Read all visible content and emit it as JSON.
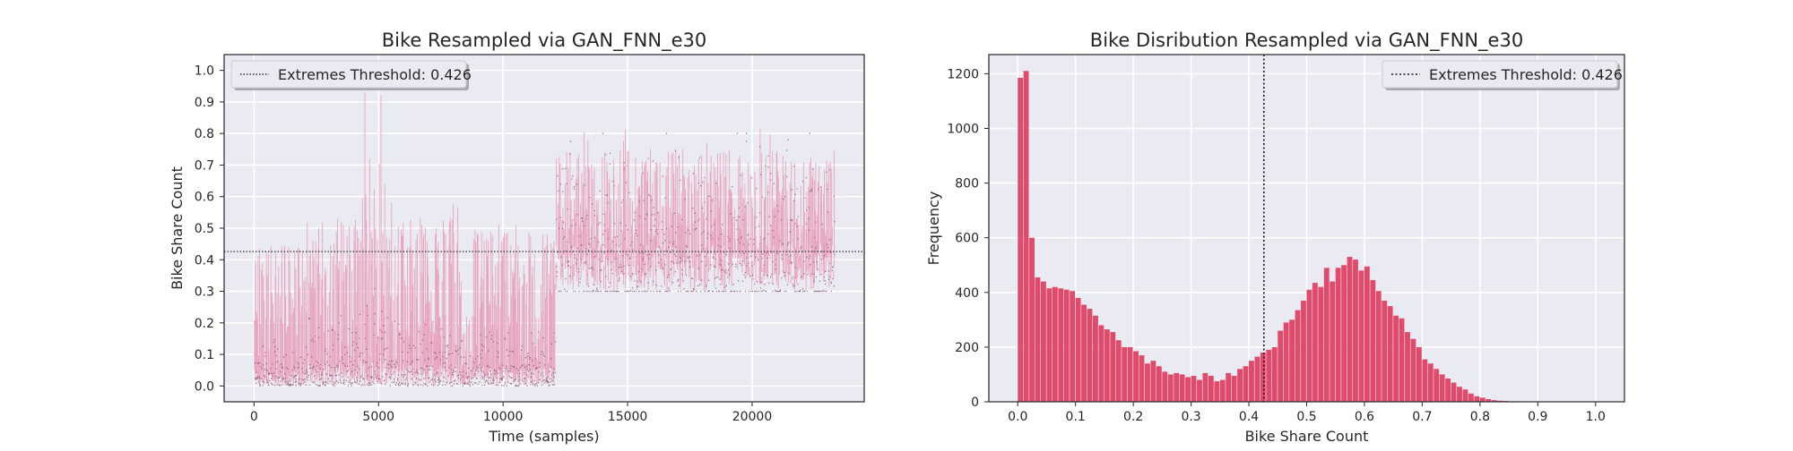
{
  "chart_data": [
    {
      "type": "line",
      "title": "Bike Resampled via GAN_FNN_e30",
      "xlabel": "Time (samples)",
      "ylabel": "Bike Share Count",
      "xlim": [
        -1200,
        24500
      ],
      "ylim": [
        -0.05,
        1.05
      ],
      "xticks": [
        0,
        5000,
        10000,
        15000,
        20000
      ],
      "yticks": [
        0.0,
        0.1,
        0.2,
        0.3,
        0.4,
        0.5,
        0.6,
        0.7,
        0.8,
        0.9,
        1.0
      ],
      "grid": true,
      "legend": {
        "position": "top-left",
        "entries": [
          "Extremes Threshold: 0.426"
        ]
      },
      "threshold": 0.426,
      "colors": {
        "line": "#e8a5bf",
        "points": "#7a4a66",
        "threshold": "#333333",
        "background": "#eaeaf2"
      },
      "series": [
        {
          "segments": [
            {
              "x_start": 0,
              "x_end": 2100,
              "low": 0.0,
              "high": 0.5,
              "peak": 0.52,
              "mean": 0.08
            },
            {
              "x_start": 2100,
              "x_end": 4200,
              "low": 0.0,
              "high": 0.6,
              "peak": 0.65,
              "mean": 0.12
            },
            {
              "x_start": 4200,
              "x_end": 5300,
              "low": 0.0,
              "high": 0.7,
              "peak": 0.93,
              "mean": 0.16
            },
            {
              "x_start": 5300,
              "x_end": 8400,
              "low": 0.0,
              "high": 0.6,
              "peak": 0.66,
              "mean": 0.12
            },
            {
              "x_start": 8400,
              "x_end": 8800,
              "low": 0.0,
              "high": 0.25,
              "peak": 0.3,
              "mean": 0.05
            },
            {
              "x_start": 8800,
              "x_end": 12100,
              "low": 0.0,
              "high": 0.55,
              "peak": 0.6,
              "mean": 0.1
            },
            {
              "x_start": 12100,
              "x_end": 23300,
              "low": 0.3,
              "high": 0.8,
              "peak": 0.89,
              "mean": 0.55
            }
          ],
          "spikes": [
            {
              "x": 4450,
              "y": 0.93
            },
            {
              "x": 5100,
              "y": 0.92
            }
          ]
        }
      ]
    },
    {
      "type": "bar",
      "title": "Bike Disribution Resampled via GAN_FNN_e30",
      "xlabel": "Bike Share Count",
      "ylabel": "Frequency",
      "xlim": [
        -0.05,
        1.05
      ],
      "ylim": [
        0,
        1270
      ],
      "xticks": [
        0.0,
        0.1,
        0.2,
        0.3,
        0.4,
        0.5,
        0.6,
        0.7,
        0.8,
        0.9,
        1.0
      ],
      "yticks": [
        0,
        200,
        400,
        600,
        800,
        1000,
        1200
      ],
      "grid": true,
      "legend": {
        "position": "top-right",
        "entries": [
          "Extremes Threshold: 0.426"
        ]
      },
      "threshold": 0.426,
      "bin_width": 0.01,
      "colors": {
        "bar": "#e04a6b",
        "threshold": "#1a1a1a",
        "background": "#eaeaf2"
      },
      "bin_start": [
        0.0,
        0.01,
        0.02,
        0.03,
        0.04,
        0.05,
        0.06,
        0.07,
        0.08,
        0.09,
        0.1,
        0.11,
        0.12,
        0.13,
        0.14,
        0.15,
        0.16,
        0.17,
        0.18,
        0.19,
        0.2,
        0.21,
        0.22,
        0.23,
        0.24,
        0.25,
        0.26,
        0.27,
        0.28,
        0.29,
        0.3,
        0.31,
        0.32,
        0.33,
        0.34,
        0.35,
        0.36,
        0.37,
        0.38,
        0.39,
        0.4,
        0.41,
        0.42,
        0.43,
        0.44,
        0.45,
        0.46,
        0.47,
        0.48,
        0.49,
        0.5,
        0.51,
        0.52,
        0.53,
        0.54,
        0.55,
        0.56,
        0.57,
        0.58,
        0.59,
        0.6,
        0.61,
        0.62,
        0.63,
        0.64,
        0.65,
        0.66,
        0.67,
        0.68,
        0.69,
        0.7,
        0.71,
        0.72,
        0.73,
        0.74,
        0.75,
        0.76,
        0.77,
        0.78,
        0.79,
        0.8,
        0.81,
        0.82,
        0.83,
        0.84,
        0.85,
        0.86
      ],
      "values": [
        1185,
        1210,
        600,
        455,
        440,
        415,
        420,
        415,
        410,
        405,
        380,
        355,
        340,
        315,
        280,
        265,
        255,
        225,
        200,
        200,
        185,
        170,
        140,
        150,
        130,
        110,
        100,
        105,
        100,
        90,
        95,
        80,
        105,
        95,
        75,
        80,
        105,
        95,
        120,
        130,
        150,
        165,
        180,
        190,
        200,
        260,
        290,
        300,
        335,
        370,
        410,
        435,
        420,
        490,
        440,
        490,
        500,
        530,
        520,
        480,
        495,
        445,
        405,
        370,
        350,
        315,
        305,
        255,
        230,
        200,
        155,
        140,
        120,
        100,
        85,
        70,
        55,
        45,
        30,
        20,
        15,
        10,
        6,
        4,
        3,
        2,
        1
      ]
    }
  ]
}
